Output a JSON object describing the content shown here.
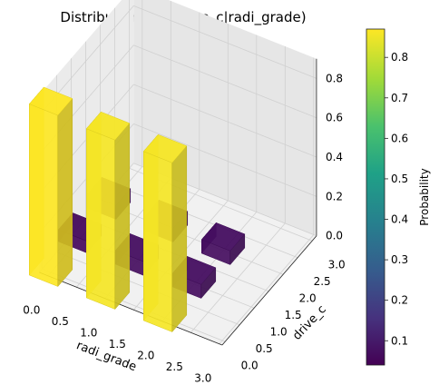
{
  "chart_data": {
    "type": "bar3d",
    "title": "Distribution of P(drive_c|radi_grade)",
    "xlabel": "radi_grade",
    "ylabel": "drive_c",
    "zlabel": "",
    "x_ticks": [
      "0.0",
      "0.5",
      "1.0",
      "1.5",
      "2.0",
      "2.5",
      "3.0"
    ],
    "y_ticks": [
      "0.0",
      "0.5",
      "1.0",
      "1.5",
      "2.0",
      "2.5",
      "3.0"
    ],
    "z_ticks": [
      "0.0",
      "0.2",
      "0.4",
      "0.6",
      "0.8"
    ],
    "xlim": [
      0,
      3
    ],
    "ylim": [
      0,
      3
    ],
    "zlim": [
      0,
      0.9
    ],
    "bars": [
      {
        "radi_grade": 0,
        "drive_c": 0,
        "p": 0.87
      },
      {
        "radi_grade": 0,
        "drive_c": 1,
        "p": 0.06
      },
      {
        "radi_grade": 0,
        "drive_c": 2,
        "p": 0.07
      },
      {
        "radi_grade": 1,
        "drive_c": 0,
        "p": 0.86
      },
      {
        "radi_grade": 1,
        "drive_c": 1,
        "p": 0.07
      },
      {
        "radi_grade": 1,
        "drive_c": 2,
        "p": 0.07
      },
      {
        "radi_grade": 2,
        "drive_c": 0,
        "p": 0.86
      },
      {
        "radi_grade": 2,
        "drive_c": 1,
        "p": 0.07
      },
      {
        "radi_grade": 2,
        "drive_c": 2,
        "p": 0.07
      }
    ],
    "colorbar": {
      "label": "Probability",
      "colormap": "viridis",
      "range": [
        0.04,
        0.87
      ],
      "ticks": [
        "0.1",
        "0.2",
        "0.3",
        "0.4",
        "0.5",
        "0.6",
        "0.7",
        "0.8"
      ]
    }
  },
  "colors": {
    "pane_floor": "#f1f1f1",
    "pane_side": "#ebebeb",
    "pane_back": "#e6e6e6",
    "grid": "#d0d0d0",
    "axis": "#222222"
  }
}
